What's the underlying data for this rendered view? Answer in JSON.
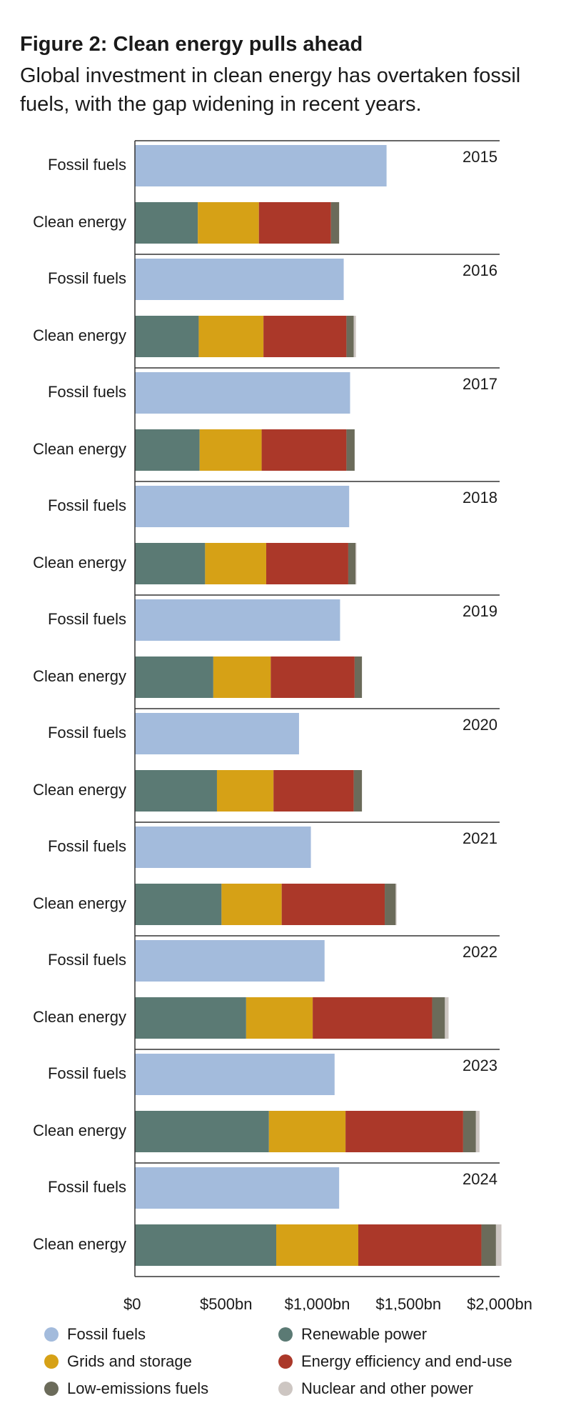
{
  "header": {
    "title": "Figure 2: Clean energy pulls ahead",
    "subtitle": "Global investment in clean energy has overtaken fossil fuels, with the gap widening in recent years."
  },
  "chart_data": {
    "type": "bar",
    "orientation": "horizontal",
    "stacked": true,
    "years": [
      "2015",
      "2016",
      "2017",
      "2018",
      "2019",
      "2020",
      "2021",
      "2022",
      "2023",
      "2024"
    ],
    "row_labels": [
      "Fossil fuels",
      "Clean energy"
    ],
    "x_ticks": [
      "$0",
      "$500bn",
      "$1,000bn",
      "$1,500bn",
      "$2,000bn"
    ],
    "xlim": [
      0,
      2000
    ],
    "grid": false,
    "legend_position": "bottom",
    "fossil": {
      "name": "Fossil fuels",
      "color": "#a3bbdc",
      "values": [
        1380,
        1145,
        1180,
        1175,
        1125,
        900,
        965,
        1040,
        1095,
        1120
      ]
    },
    "clean_series": [
      {
        "name": "Renewable power",
        "color": "#5b7a74",
        "values": [
          345,
          350,
          355,
          385,
          430,
          450,
          475,
          610,
          735,
          775
        ]
      },
      {
        "name": "Grids and storage",
        "color": "#d6a116",
        "values": [
          335,
          355,
          340,
          335,
          315,
          310,
          330,
          365,
          420,
          450
        ]
      },
      {
        "name": "Energy efficiency and end-use",
        "color": "#ab3829",
        "values": [
          395,
          455,
          465,
          450,
          460,
          440,
          565,
          655,
          645,
          675
        ]
      },
      {
        "name": "Low-emissions fuels",
        "color": "#6b6b5a",
        "values": [
          45,
          40,
          45,
          40,
          40,
          45,
          60,
          70,
          70,
          80
        ]
      },
      {
        "name": "Nuclear and other power",
        "color": "#cdc6c2",
        "values": [
          0,
          12,
          0,
          5,
          0,
          0,
          5,
          20,
          20,
          30
        ]
      }
    ]
  }
}
